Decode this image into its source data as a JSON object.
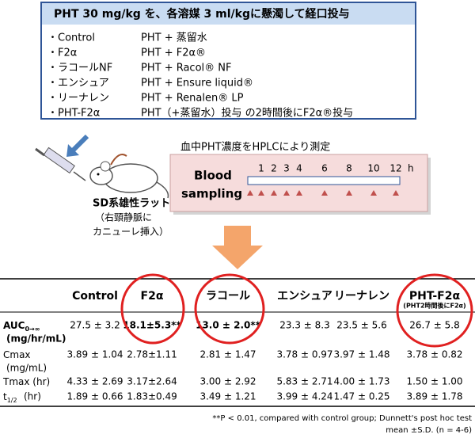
{
  "protocol": {
    "title": "PHT 30 mg/kg を、各溶媒 3 ml/kgに懸濁して経口投与",
    "items": [
      {
        "group": "・Control",
        "treatment": "PHT + 蒸留水"
      },
      {
        "group": "・F2α",
        "treatment": "PHT + F2α®"
      },
      {
        "group": "・ラコールNF",
        "treatment": "PHT + Racol® NF"
      },
      {
        "group": "・エンシュア",
        "treatment": "PHT + Ensure liquid®"
      },
      {
        "group": "・リーナレン",
        "treatment": "PHT + Renalen® LP"
      },
      {
        "group": "・PHT-F2α",
        "treatment": "PHT（+蒸留水）投与 の2時間後にF2α®投与"
      }
    ]
  },
  "animal": {
    "name": "SD系雄性ラット",
    "note_line1": "（右頸静脈に",
    "note_line2": "カニューレ挿入）"
  },
  "sampling": {
    "caption": "血中PHT濃度をHPLCにより測定",
    "label_line1": "Blood",
    "label_line2": "sampling",
    "times": [
      "1",
      "2",
      "3",
      "4",
      "6",
      "8",
      "10",
      "12"
    ],
    "unit": "h"
  },
  "table": {
    "columns": [
      "Control",
      "F2α",
      "ラコール",
      "エンシュア",
      "リーナレン",
      "PHT-F2α"
    ],
    "column_note": "(PHT2時間後にF2α)",
    "rows": [
      {
        "label": {
          "main": "AUC",
          "sub": "0→∞",
          "unit": "(mg/hr/mL)"
        },
        "cells": [
          "27.5 ± 3.2",
          "18.1±5.3**",
          "13.0 ± 2.0**",
          "23.3 ± 8.3",
          "23.5 ± 5.6",
          "26.7 ± 5.8"
        ]
      },
      {
        "label": {
          "main": "Cmax",
          "unit": "(mg/mL)"
        },
        "cells": [
          "3.89 ± 1.04",
          "2.78±1.11",
          "2.81 ± 1.47",
          "3.78 ± 0.97",
          "3.97 ± 1.48",
          "3.78 ± 0.82"
        ]
      },
      {
        "label": {
          "main": "Tmax (hr)"
        },
        "cells": [
          "4.33 ± 2.69",
          "3.17±2.64",
          "3.00 ± 2.92",
          "5.83 ± 2.71",
          "4.00 ± 1.73",
          "1.50 ± 1.00"
        ]
      },
      {
        "label": {
          "main": "t",
          "sub": "1/2",
          "unit": "(hr)"
        },
        "cells": [
          "1.89 ± 0.66",
          "1.83±0.49",
          "3.49 ± 1.21",
          "3.99 ± 4.24",
          "1.47 ± 0.25",
          "3.89 ± 1.78"
        ]
      }
    ],
    "footnote1": "**P < 0.01, compared with control group; Dunnett's post hoc test",
    "footnote2": "mean ±S.D. (n = 4-6)"
  }
}
